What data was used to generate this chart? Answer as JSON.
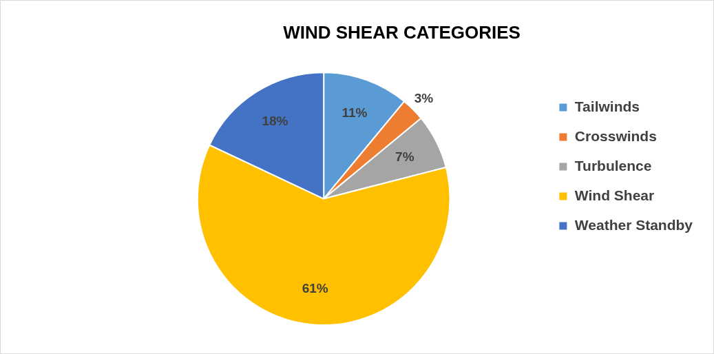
{
  "chart_data": {
    "type": "pie",
    "title": "WIND SHEAR CATEGORIES",
    "categories": [
      "Tailwinds",
      "Crosswinds",
      "Turbulence",
      "Wind Shear",
      "Weather Standby"
    ],
    "values": [
      11,
      3,
      7,
      61,
      18
    ],
    "colors": [
      "#5b9bd5",
      "#ed7d31",
      "#a5a5a5",
      "#ffc000",
      "#4472c4"
    ],
    "value_labels": [
      "11%",
      "3%",
      "7%",
      "61%",
      "18%"
    ],
    "legend": "right"
  }
}
